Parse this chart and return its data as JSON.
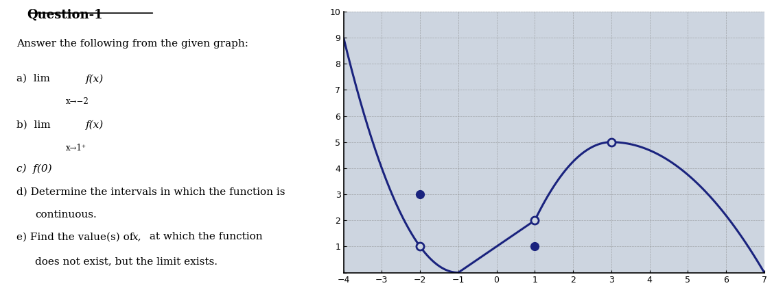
{
  "title": "Question-1",
  "subtitle": "Answer the following from the given graph:",
  "graph": {
    "xlim": [
      -4,
      7
    ],
    "ylim": [
      0,
      10
    ],
    "xticks": [
      -4,
      -3,
      -2,
      -1,
      0,
      1,
      2,
      3,
      4,
      5,
      6,
      7
    ],
    "yticks": [
      0,
      1,
      2,
      3,
      4,
      5,
      6,
      7,
      8,
      9,
      10
    ],
    "line_color": "#1a237e",
    "line_width": 2.2,
    "background_color": "#cdd5e0",
    "grid_color": "#888888",
    "open_circles": [
      [
        -2,
        1
      ],
      [
        1,
        2
      ],
      [
        3,
        5
      ]
    ],
    "filled_circles": [
      [
        -2,
        3
      ],
      [
        1,
        1
      ]
    ],
    "circle_size": 8
  }
}
